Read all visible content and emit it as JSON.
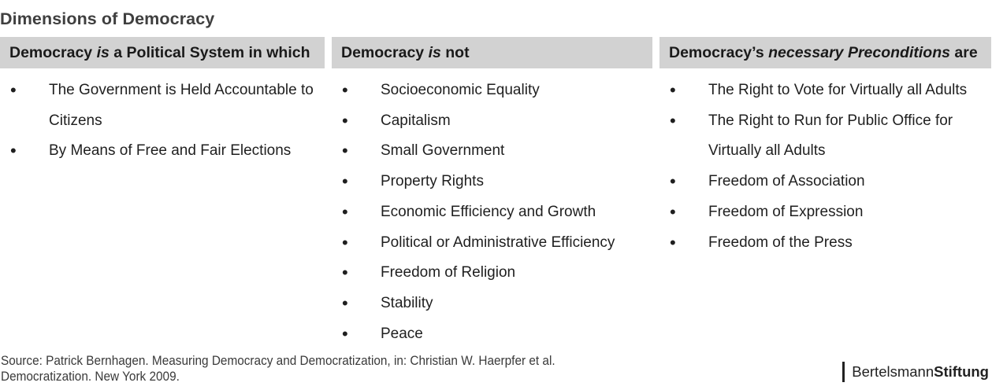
{
  "page": {
    "title": "Dimensions of Democracy"
  },
  "colors": {
    "header_bg": "#d2d2d2",
    "title_text": "#3f3f3f",
    "body_text": "#1f1f1f",
    "logo_text": "#222222"
  },
  "columns": [
    {
      "header": {
        "pre": "Democracy ",
        "italic": "is",
        "post": " a Political System in which"
      },
      "items": [
        "The Government is Held Accountable to Citizens",
        "By Means of Free and Fair Elections"
      ]
    },
    {
      "header": {
        "pre": "Democracy ",
        "italic": "is",
        "post": " not"
      },
      "items": [
        "Socioeconomic Equality",
        "Capitalism",
        "Small Government",
        "Property Rights",
        "Economic Efficiency and Growth",
        "Political or Administrative Efficiency",
        "Freedom of Religion",
        "Stability",
        "Peace"
      ]
    },
    {
      "header": {
        "pre": "Democracy’s ",
        "italic": "necessary Preconditions",
        "post": " are"
      },
      "items": [
        "The Right to Vote for Virtually all Adults",
        "The Right to Run for Public Office for Virtually all Adults",
        "Freedom of Association",
        "Freedom of Expression",
        "Freedom of the Press"
      ]
    }
  ],
  "footer": {
    "source_line1": "Source: Patrick Bernhagen. Measuring Democracy and Democratization, in: Christian W. Haerpfer et al.",
    "source_line2": "Democratization. New York 2009.",
    "logo_part1": "Bertelsmann",
    "logo_part2": "Stiftung"
  }
}
